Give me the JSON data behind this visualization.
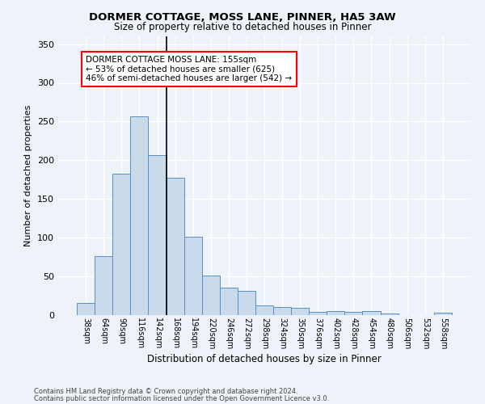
{
  "title1": "DORMER COTTAGE, MOSS LANE, PINNER, HA5 3AW",
  "title2": "Size of property relative to detached houses in Pinner",
  "xlabel": "Distribution of detached houses by size in Pinner",
  "ylabel": "Number of detached properties",
  "bar_labels": [
    "38sqm",
    "64sqm",
    "90sqm",
    "116sqm",
    "142sqm",
    "168sqm",
    "194sqm",
    "220sqm",
    "246sqm",
    "272sqm",
    "298sqm",
    "324sqm",
    "350sqm",
    "376sqm",
    "402sqm",
    "428sqm",
    "454sqm",
    "480sqm",
    "506sqm",
    "532sqm",
    "558sqm"
  ],
  "bar_values": [
    16,
    76,
    183,
    257,
    207,
    177,
    101,
    51,
    35,
    31,
    13,
    10,
    9,
    4,
    5,
    4,
    5,
    2,
    0,
    0,
    3
  ],
  "bar_color": "#c9daea",
  "bar_edge_color": "#5a8fc2",
  "annotation_text": "DORMER COTTAGE MOSS LANE: 155sqm\n← 53% of detached houses are smaller (625)\n46% of semi-detached houses are larger (542) →",
  "vline_bar_index": 4,
  "footer1": "Contains HM Land Registry data © Crown copyright and database right 2024.",
  "footer2": "Contains public sector information licensed under the Open Government Licence v3.0.",
  "ylim": [
    0,
    360
  ],
  "yticks": [
    0,
    50,
    100,
    150,
    200,
    250,
    300,
    350
  ],
  "background_color": "#eef2f9",
  "grid_color": "#ffffff"
}
